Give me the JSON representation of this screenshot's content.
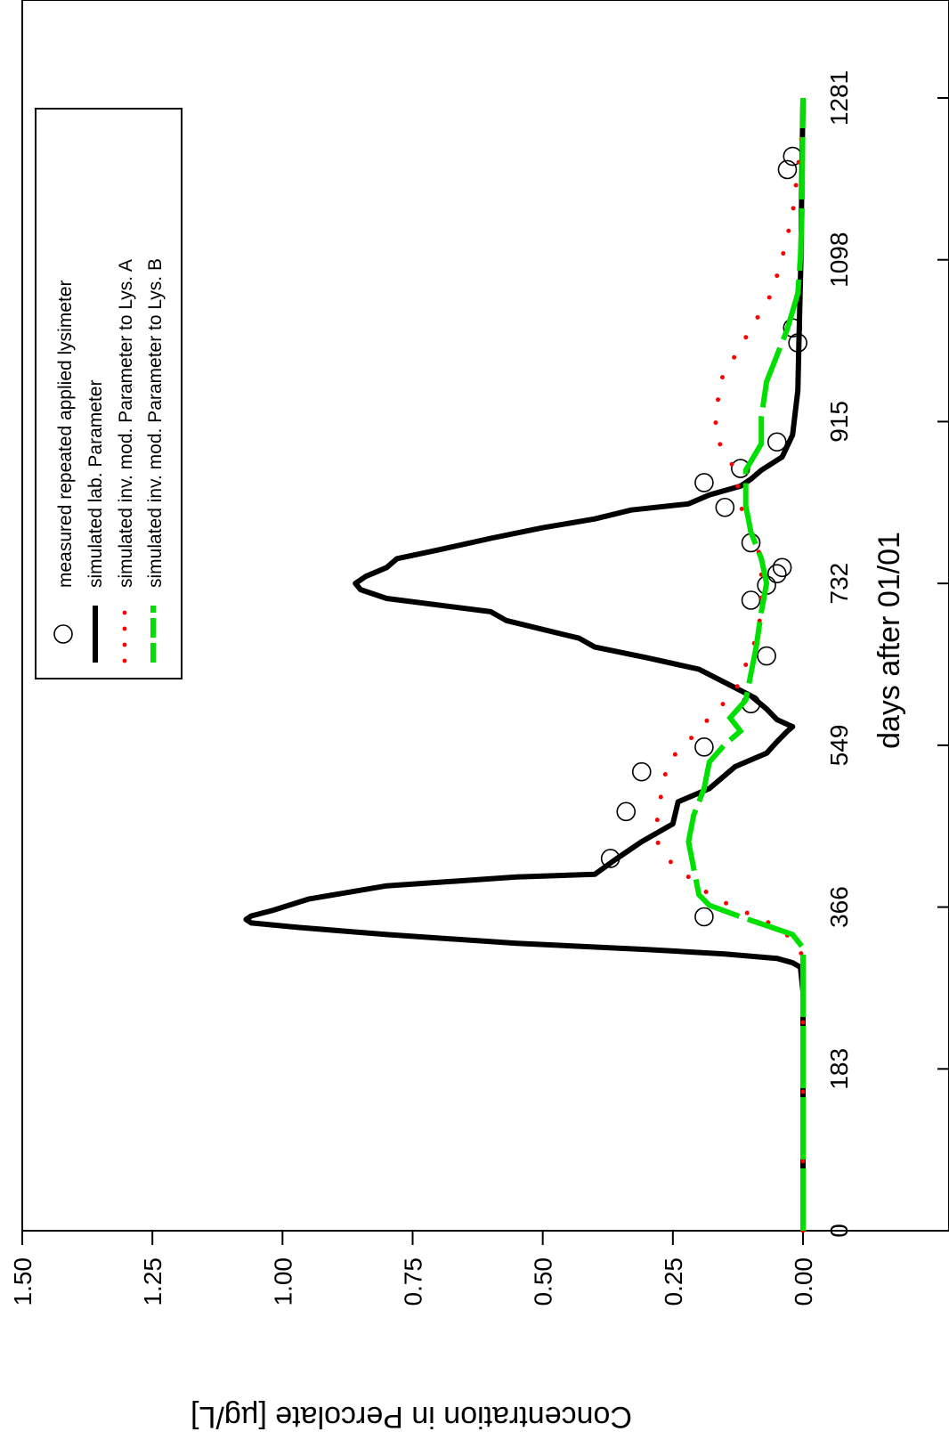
{
  "chart_data": {
    "type": "line",
    "orientation": "rotated-90-clockwise",
    "xlabel": "days after 01/01",
    "ylabel": "Concentration in Percolate [µg/L]",
    "xlim": [
      0,
      1350
    ],
    "ylim": [
      0,
      1.5
    ],
    "xticks": [
      0,
      183,
      366,
      549,
      732,
      915,
      1098,
      1281
    ],
    "xtick_labels": [
      "0",
      "183",
      "366",
      "549",
      "732",
      "915",
      "1098",
      "1281"
    ],
    "yticks": [
      0,
      0.25,
      0.5,
      0.75,
      1.0,
      1.25,
      1.5
    ],
    "ytick_labels": [
      "0.00",
      "0.25",
      "0.50",
      "0.75",
      "1.00",
      "1.25",
      "1.50"
    ],
    "grid": false,
    "legend_position": "top-right",
    "series": [
      {
        "name": "measured repeated applied lysimeter",
        "style": "open-circle",
        "color": "#000000",
        "points": [
          [
            355,
            0.19
          ],
          [
            421,
            0.37
          ],
          [
            474,
            0.34
          ],
          [
            519,
            0.31
          ],
          [
            547,
            0.19
          ],
          [
            596,
            0.1
          ],
          [
            650,
            0.07
          ],
          [
            713,
            0.1
          ],
          [
            730,
            0.07
          ],
          [
            743,
            0.05
          ],
          [
            750,
            0.04
          ],
          [
            778,
            0.1
          ],
          [
            818,
            0.15
          ],
          [
            846,
            0.19
          ],
          [
            862,
            0.12
          ],
          [
            892,
            0.05
          ],
          [
            1004,
            0.01
          ],
          [
            1021,
            0.02
          ],
          [
            1200,
            0.03
          ],
          [
            1215,
            0.02
          ]
        ]
      },
      {
        "name": "simulated lab. Parameter",
        "style": "solid",
        "color": "#000000",
        "points": [
          [
            0,
            0.0
          ],
          [
            270,
            0.0
          ],
          [
            298,
            0.005
          ],
          [
            303,
            0.02
          ],
          [
            308,
            0.05
          ],
          [
            313,
            0.15
          ],
          [
            318,
            0.3
          ],
          [
            325,
            0.55
          ],
          [
            335,
            0.8
          ],
          [
            343,
            0.97
          ],
          [
            348,
            1.06
          ],
          [
            352,
            1.07
          ],
          [
            356,
            1.06
          ],
          [
            362,
            1.02
          ],
          [
            375,
            0.95
          ],
          [
            390,
            0.8
          ],
          [
            400,
            0.55
          ],
          [
            403,
            0.4
          ],
          [
            420,
            0.36
          ],
          [
            440,
            0.31
          ],
          [
            460,
            0.25
          ],
          [
            485,
            0.24
          ],
          [
            500,
            0.18
          ],
          [
            525,
            0.13
          ],
          [
            540,
            0.07
          ],
          [
            553,
            0.05
          ],
          [
            565,
            0.03
          ],
          [
            570,
            0.02
          ],
          [
            578,
            0.05
          ],
          [
            590,
            0.07
          ],
          [
            605,
            0.1
          ],
          [
            620,
            0.15
          ],
          [
            635,
            0.2
          ],
          [
            648,
            0.3
          ],
          [
            660,
            0.4
          ],
          [
            670,
            0.43
          ],
          [
            690,
            0.57
          ],
          [
            700,
            0.6
          ],
          [
            715,
            0.8
          ],
          [
            725,
            0.85
          ],
          [
            732,
            0.86
          ],
          [
            740,
            0.84
          ],
          [
            750,
            0.8
          ],
          [
            760,
            0.78
          ],
          [
            770,
            0.7
          ],
          [
            783,
            0.6
          ],
          [
            795,
            0.5
          ],
          [
            805,
            0.4
          ],
          [
            815,
            0.33
          ],
          [
            822,
            0.22
          ],
          [
            832,
            0.18
          ],
          [
            842,
            0.12
          ],
          [
            850,
            0.1
          ],
          [
            860,
            0.08
          ],
          [
            875,
            0.04
          ],
          [
            900,
            0.02
          ],
          [
            950,
            0.01
          ],
          [
            1000,
            0.008
          ],
          [
            1100,
            0.004
          ],
          [
            1200,
            0.002
          ],
          [
            1281,
            0.0
          ]
        ]
      },
      {
        "name": "simulated inv. mod. Parameter to Lys. A",
        "style": "dotted",
        "color": "#ff0000",
        "points": [
          [
            0,
            0.0
          ],
          [
            310,
            0.0
          ],
          [
            330,
            0.02
          ],
          [
            350,
            0.07
          ],
          [
            365,
            0.13
          ],
          [
            380,
            0.18
          ],
          [
            400,
            0.22
          ],
          [
            420,
            0.26
          ],
          [
            440,
            0.28
          ],
          [
            470,
            0.28
          ],
          [
            500,
            0.27
          ],
          [
            530,
            0.26
          ],
          [
            560,
            0.21
          ],
          [
            580,
            0.18
          ],
          [
            610,
            0.13
          ],
          [
            640,
            0.11
          ],
          [
            670,
            0.09
          ],
          [
            700,
            0.08
          ],
          [
            732,
            0.08
          ],
          [
            760,
            0.08
          ],
          [
            790,
            0.1
          ],
          [
            820,
            0.12
          ],
          [
            860,
            0.13
          ],
          [
            900,
            0.17
          ],
          [
            960,
            0.16
          ],
          [
            1000,
            0.12
          ],
          [
            1030,
            0.09
          ],
          [
            1060,
            0.06
          ],
          [
            1100,
            0.04
          ],
          [
            1150,
            0.02
          ],
          [
            1200,
            0.01
          ],
          [
            1250,
            0.0
          ]
        ]
      },
      {
        "name": "simulated inv. mod. Parameter to Lys. B",
        "style": "dashed",
        "color": "#00e000",
        "points": [
          [
            0,
            0.0
          ],
          [
            320,
            0.0
          ],
          [
            335,
            0.02
          ],
          [
            345,
            0.07
          ],
          [
            355,
            0.12
          ],
          [
            368,
            0.18
          ],
          [
            380,
            0.2
          ],
          [
            410,
            0.21
          ],
          [
            440,
            0.22
          ],
          [
            470,
            0.21
          ],
          [
            500,
            0.19
          ],
          [
            530,
            0.18
          ],
          [
            550,
            0.15
          ],
          [
            565,
            0.12
          ],
          [
            580,
            0.14
          ],
          [
            600,
            0.11
          ],
          [
            630,
            0.1
          ],
          [
            660,
            0.09
          ],
          [
            700,
            0.08
          ],
          [
            732,
            0.07
          ],
          [
            760,
            0.08
          ],
          [
            790,
            0.1
          ],
          [
            820,
            0.11
          ],
          [
            860,
            0.11
          ],
          [
            890,
            0.08
          ],
          [
            920,
            0.08
          ],
          [
            960,
            0.07
          ],
          [
            990,
            0.05
          ],
          [
            1020,
            0.03
          ],
          [
            1060,
            0.01
          ],
          [
            1100,
            0.005
          ],
          [
            1150,
            0.002
          ],
          [
            1281,
            0.0
          ]
        ]
      }
    ]
  }
}
